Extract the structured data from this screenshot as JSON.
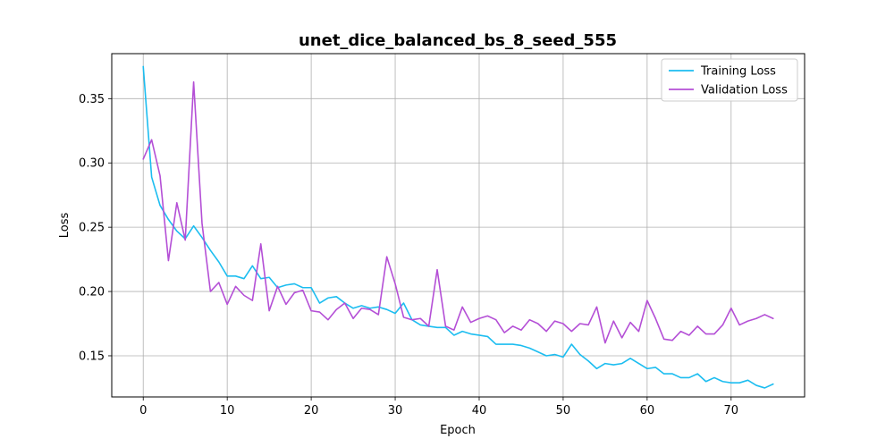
{
  "chart_data": {
    "type": "line",
    "title": "unet_dice_balanced_bs_8_seed_555",
    "xlabel": "Epoch",
    "ylabel": "Loss",
    "xlim": [
      -3.75,
      78.75
    ],
    "ylim": [
      0.118,
      0.385
    ],
    "xticks": [
      0,
      10,
      20,
      30,
      40,
      50,
      60,
      70
    ],
    "yticks": [
      0.15,
      0.2,
      0.25,
      0.3,
      0.35
    ],
    "ytick_labels": [
      "0.15",
      "0.20",
      "0.25",
      "0.30",
      "0.35"
    ],
    "grid": true,
    "legend_position": "top-right",
    "series": [
      {
        "name": "Training Loss",
        "color": "#1cbdf0",
        "values": [
          0.375,
          0.289,
          0.267,
          0.256,
          0.247,
          0.241,
          0.251,
          0.242,
          0.232,
          0.223,
          0.212,
          0.212,
          0.21,
          0.22,
          0.21,
          0.211,
          0.203,
          0.205,
          0.206,
          0.203,
          0.203,
          0.191,
          0.195,
          0.196,
          0.191,
          0.187,
          0.189,
          0.187,
          0.188,
          0.186,
          0.183,
          0.191,
          0.178,
          0.174,
          0.173,
          0.172,
          0.172,
          0.166,
          0.169,
          0.167,
          0.166,
          0.165,
          0.159,
          0.159,
          0.159,
          0.158,
          0.156,
          0.153,
          0.15,
          0.151,
          0.149,
          0.159,
          0.151,
          0.146,
          0.14,
          0.144,
          0.143,
          0.144,
          0.148,
          0.144,
          0.14,
          0.141,
          0.136,
          0.136,
          0.133,
          0.133,
          0.136,
          0.13,
          0.133,
          0.13,
          0.129,
          0.129,
          0.131,
          0.127,
          0.125,
          0.128
        ]
      },
      {
        "name": "Validation Loss",
        "color": "#b44fd6",
        "values": [
          0.303,
          0.318,
          0.29,
          0.224,
          0.269,
          0.24,
          0.363,
          0.253,
          0.2,
          0.207,
          0.19,
          0.204,
          0.197,
          0.193,
          0.237,
          0.185,
          0.204,
          0.19,
          0.199,
          0.201,
          0.185,
          0.184,
          0.178,
          0.186,
          0.191,
          0.179,
          0.187,
          0.186,
          0.182,
          0.227,
          0.206,
          0.18,
          0.178,
          0.179,
          0.173,
          0.217,
          0.173,
          0.17,
          0.188,
          0.176,
          0.179,
          0.181,
          0.178,
          0.168,
          0.173,
          0.17,
          0.178,
          0.175,
          0.169,
          0.177,
          0.175,
          0.169,
          0.175,
          0.174,
          0.188,
          0.16,
          0.177,
          0.164,
          0.176,
          0.169,
          0.193,
          0.179,
          0.163,
          0.162,
          0.169,
          0.166,
          0.173,
          0.167,
          0.167,
          0.174,
          0.187,
          0.174,
          0.177,
          0.179,
          0.182,
          0.179
        ]
      }
    ]
  }
}
